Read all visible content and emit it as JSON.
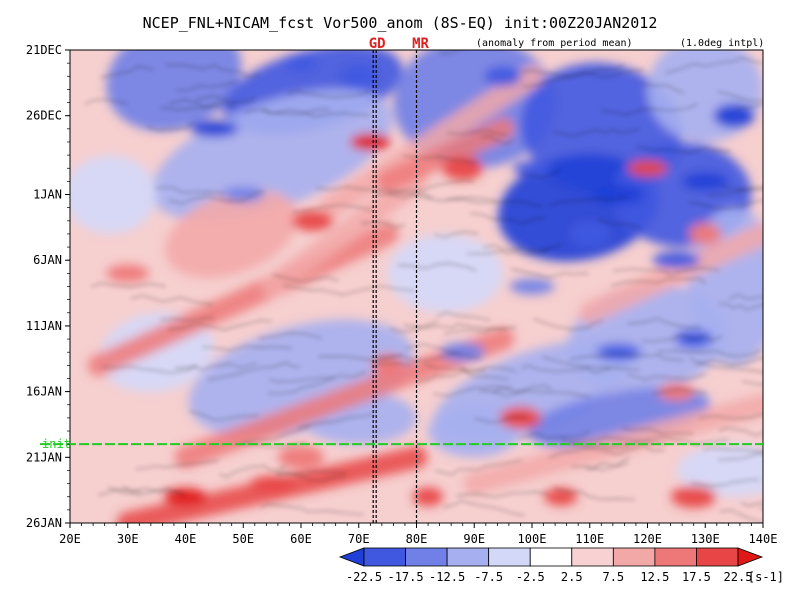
{
  "chart_data": {
    "type": "heatmap",
    "title": "NCEP_FNL+NICAM_fcst Vor500_anom (8S-EQ) init:00Z20JAN2012",
    "subtitle_left": "(anomaly from period mean)",
    "subtitle_right": "(1.0deg intpl)",
    "x_axis": {
      "range": [
        20,
        140
      ],
      "ticks": [
        20,
        30,
        40,
        50,
        60,
        70,
        80,
        90,
        100,
        110,
        120,
        130,
        140
      ],
      "tick_labels": [
        "20E",
        "30E",
        "40E",
        "50E",
        "60E",
        "70E",
        "80E",
        "90E",
        "100E",
        "110E",
        "120E",
        "130E",
        "140E"
      ]
    },
    "y_axis": {
      "range_days": [
        0,
        36
      ],
      "ticks": [
        0,
        5,
        11,
        16,
        21,
        26,
        31,
        36
      ],
      "tick_labels": [
        "21DEC",
        "26DEC",
        "1JAN",
        "6JAN",
        "11JAN",
        "16JAN",
        "21JAN",
        "26JAN"
      ],
      "direction": "top-to-bottom"
    },
    "init_line": {
      "day": 30,
      "label": "init",
      "color": "#22cc22"
    },
    "markers": [
      {
        "label": "GD",
        "lon": 72.5,
        "color": "#e02020"
      },
      {
        "label": "MR",
        "lon": 80,
        "color": "#e02020"
      }
    ],
    "colorbar": {
      "levels": [
        "-22.5",
        "-17.5",
        "-12.5",
        "-7.5",
        "-2.5",
        "2.5",
        "7.5",
        "12.5",
        "17.5",
        "22.5"
      ],
      "colors": [
        "#1f3fd6",
        "#4058e0",
        "#7080e6",
        "#a6afef",
        "#d4d8f8",
        "#ffffff",
        "#f8d2d2",
        "#f3a8a8",
        "#ee7878",
        "#e84646",
        "#e01818"
      ],
      "unit": "[s-1]"
    },
    "notes": "Hovmoller diagram of 500hPa vorticity anomaly averaged over 8S-EQ; blue negative, red positive. Field reproduced schematically with eastward-propagating positive band and blue upper-right region."
  }
}
